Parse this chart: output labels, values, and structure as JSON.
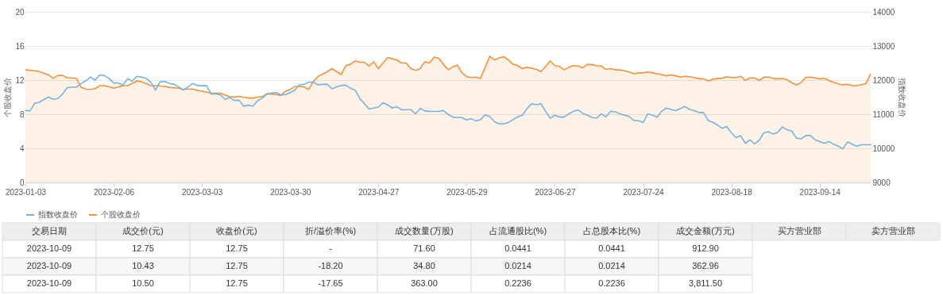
{
  "chart_data": [
    {
      "type": "line",
      "ylabel": "个股收盘价",
      "y2label": "指数收盘价",
      "ylim": [
        0,
        20
      ],
      "yticks": [
        0,
        4,
        8,
        12,
        16,
        20
      ],
      "y2lim": [
        9000,
        14000
      ],
      "y2ticks": [
        9000,
        10000,
        11000,
        12000,
        13000,
        14000
      ],
      "grid": "y",
      "legend": "bottom",
      "categories": [
        "2023-01-03",
        null,
        null,
        null,
        null,
        null,
        null,
        null,
        null,
        null,
        null,
        null,
        null,
        null,
        null,
        null,
        null,
        null,
        null,
        "2023-02-06",
        null,
        null,
        null,
        null,
        null,
        null,
        null,
        null,
        null,
        null,
        null,
        null,
        null,
        null,
        null,
        null,
        null,
        null,
        "2023-03-03",
        null,
        null,
        null,
        null,
        null,
        null,
        null,
        null,
        null,
        null,
        null,
        null,
        null,
        null,
        null,
        null,
        null,
        null,
        "2023-03-30",
        null,
        null,
        null,
        null,
        null,
        null,
        null,
        null,
        null,
        null,
        null,
        null,
        null,
        null,
        null,
        null,
        null,
        null,
        "2023-04-27",
        null,
        null,
        null,
        null,
        null,
        null,
        null,
        null,
        null,
        null,
        null,
        null,
        null,
        null,
        null,
        null,
        null,
        null,
        "2023-05-29",
        null,
        null,
        null,
        null,
        null,
        null,
        null,
        null,
        null,
        null,
        null,
        null,
        null,
        null,
        null,
        null,
        null,
        null,
        "2023-06-27",
        null,
        null,
        null,
        null,
        null,
        null,
        null,
        null,
        null,
        null,
        null,
        null,
        null,
        null,
        null,
        null,
        null,
        null,
        "2023-07-24",
        null,
        null,
        null,
        null,
        null,
        null,
        null,
        null,
        null,
        null,
        null,
        null,
        null,
        null,
        null,
        null,
        null,
        null,
        "2023-08-18",
        null,
        null,
        null,
        null,
        null,
        null,
        null,
        null,
        null,
        null,
        null,
        null,
        null,
        null,
        null,
        null,
        null,
        null,
        "2023-09-14",
        null,
        null,
        null,
        null,
        null,
        null,
        null,
        null,
        null,
        null,
        null
      ],
      "series": [
        {
          "name": "指数收盘价",
          "type": "line",
          "axis": "y2",
          "color": "#74b4e3",
          "values": [
            11110,
            11095,
            11320,
            11350,
            11435,
            11500,
            11435,
            11460,
            11590,
            11780,
            11790,
            11800,
            11900,
            11975,
            12090,
            12000,
            12150,
            12130,
            12050,
            11915,
            11920,
            11850,
            12040,
            11970,
            12110,
            12085,
            12050,
            11940,
            11705,
            11950,
            11960,
            11900,
            11875,
            11800,
            11705,
            11800,
            11900,
            11845,
            11835,
            11835,
            11590,
            11600,
            11565,
            11435,
            11490,
            11405,
            11410,
            11235,
            11265,
            11240,
            11395,
            11475,
            11590,
            11620,
            11635,
            11565,
            11575,
            11630,
            11705,
            11860,
            11875,
            11940,
            11940,
            11860,
            11875,
            11875,
            11745,
            11800,
            11845,
            11850,
            11760,
            11705,
            11460,
            11305,
            11150,
            11180,
            11210,
            11335,
            11275,
            11180,
            11220,
            11125,
            11135,
            11135,
            11010,
            11170,
            11095,
            11085,
            11080,
            11085,
            11110,
            10995,
            10915,
            10900,
            10900,
            10830,
            10870,
            10800,
            10840,
            10985,
            10930,
            10780,
            10715,
            10715,
            10760,
            10840,
            10925,
            10970,
            11165,
            11305,
            11280,
            11305,
            11085,
            10880,
            10970,
            10915,
            10915,
            11010,
            11085,
            11125,
            11025,
            10970,
            10900,
            10885,
            11010,
            10920,
            11085,
            11070,
            11010,
            10970,
            10930,
            10815,
            10810,
            10755,
            11010,
            10970,
            10915,
            11085,
            11180,
            11140,
            11105,
            11165,
            11225,
            11140,
            11105,
            11050,
            11050,
            10815,
            10760,
            10685,
            10585,
            10640,
            10455,
            10315,
            10370,
            10145,
            10250,
            10130,
            10235,
            10455,
            10485,
            10420,
            10470,
            10625,
            10545,
            10505,
            10300,
            10275,
            10375,
            10375,
            10250,
            10200,
            10145,
            10200,
            10120,
            10065,
            9980,
            10185,
            10120,
            10060,
            10105,
            10105,
            10105
          ]
        },
        {
          "name": "个股收盘价",
          "type": "area",
          "color": "#f7913a",
          "values": [
            13.2,
            13.15,
            13.1,
            13.0,
            12.8,
            12.6,
            12.2,
            12.55,
            12.55,
            12.25,
            12.25,
            12.2,
            11.15,
            10.95,
            10.9,
            11.0,
            11.35,
            11.35,
            11.2,
            11.05,
            11.2,
            11.35,
            11.35,
            11.6,
            11.9,
            11.8,
            11.6,
            11.35,
            11.35,
            11.3,
            11.25,
            11.15,
            11.1,
            11.05,
            10.9,
            10.95,
            10.95,
            10.8,
            10.7,
            10.6,
            10.45,
            10.45,
            10.45,
            10.25,
            10.05,
            10.0,
            10.1,
            10.0,
            9.9,
            9.9,
            10.0,
            10.05,
            10.4,
            10.35,
            10.3,
            10.2,
            10.7,
            10.9,
            11.25,
            11.25,
            11.2,
            10.9,
            11.85,
            12.45,
            12.7,
            13.0,
            13.35,
            13.0,
            12.65,
            13.7,
            13.85,
            14.25,
            14.1,
            14.1,
            13.65,
            14.15,
            13.35,
            14.0,
            14.65,
            14.5,
            14.35,
            14.0,
            14.0,
            13.35,
            13.15,
            13.35,
            14.15,
            14.0,
            14.7,
            14.55,
            13.85,
            13.2,
            13.55,
            13.75,
            12.85,
            12.4,
            12.3,
            12.35,
            12.2,
            13.55,
            14.8,
            14.35,
            14.6,
            14.75,
            14.35,
            13.85,
            13.7,
            13.35,
            13.5,
            13.4,
            13.25,
            13.0,
            13.6,
            14.25,
            13.7,
            13.6,
            13.2,
            13.5,
            13.7,
            13.65,
            13.45,
            13.85,
            13.8,
            13.7,
            13.65,
            13.25,
            13.35,
            13.2,
            13.2,
            13.1,
            12.95,
            12.75,
            12.85,
            12.85,
            12.95,
            12.85,
            12.75,
            12.65,
            12.5,
            12.6,
            12.5,
            12.35,
            12.45,
            12.4,
            12.3,
            12.15,
            12.15,
            11.9,
            12.1,
            12.2,
            12.2,
            12.4,
            12.3,
            12.3,
            12.45,
            11.95,
            12.25,
            12.25,
            11.95,
            12.35,
            12.35,
            12.2,
            12.15,
            12.2,
            12.05,
            11.7,
            11.45,
            11.7,
            12.3,
            12.35,
            12.25,
            12.15,
            12.2,
            11.95,
            11.75,
            11.55,
            11.45,
            11.5,
            11.35,
            11.35,
            11.45,
            11.6,
            12.75
          ]
        }
      ]
    },
    {
      "type": "other",
      "categories": [
        "交易日期",
        "成交价(元)",
        "收盘价(元)",
        "折/溢价率(%)",
        "成交数量(万股)",
        "占流通股比(%)",
        "占总股本比(%)",
        "成交金额(万元)",
        "买方营业部",
        "卖方营业部"
      ],
      "cell_labels": [
        [
          "2023-10-09",
          "12.75",
          "12.75",
          "-",
          "71.60",
          "0.0441",
          "0.0441",
          "912.90",
          null,
          null
        ],
        [
          "2023-10-09",
          "10.43",
          "12.75",
          "-18.20",
          "34.80",
          "0.0214",
          "0.0214",
          "362.96",
          null,
          null
        ],
        [
          "2023-10-09",
          "10.50",
          "12.75",
          "-17.65",
          "363.00",
          "0.2236",
          "0.2236",
          "3,811.50",
          null,
          null
        ]
      ]
    }
  ]
}
